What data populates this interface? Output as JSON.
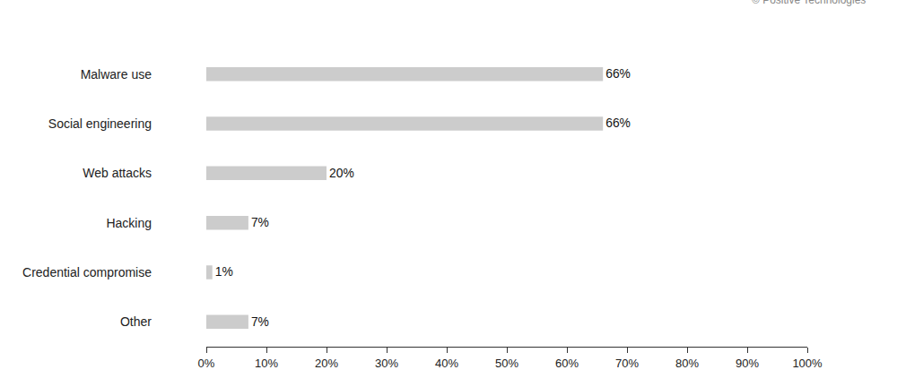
{
  "chart_data": {
    "type": "bar",
    "orientation": "horizontal",
    "categories": [
      "Malware use",
      "Social engineering",
      "Web attacks",
      "Hacking",
      "Credential compromise",
      "Other"
    ],
    "values": [
      66,
      66,
      20,
      7,
      1,
      7
    ],
    "value_labels": [
      "66%",
      "66%",
      "20%",
      "7%",
      "1%",
      "7%"
    ],
    "data_labels": true,
    "color": "#cccccc",
    "xlim": [
      0,
      100
    ],
    "xticks": [
      {
        "value": 0,
        "label": "0%"
      },
      {
        "value": 10,
        "label": "10%"
      },
      {
        "value": 20,
        "label": "20%"
      },
      {
        "value": 30,
        "label": "30%"
      },
      {
        "value": 40,
        "label": "40%"
      },
      {
        "value": 50,
        "label": "50%"
      },
      {
        "value": 60,
        "label": "60%"
      },
      {
        "value": 70,
        "label": "70%"
      },
      {
        "value": 80,
        "label": "80%"
      },
      {
        "value": 90,
        "label": "90%"
      },
      {
        "value": 100,
        "label": "100%"
      }
    ],
    "grid": false,
    "annotations": [
      "© Positive Technologies"
    ]
  }
}
